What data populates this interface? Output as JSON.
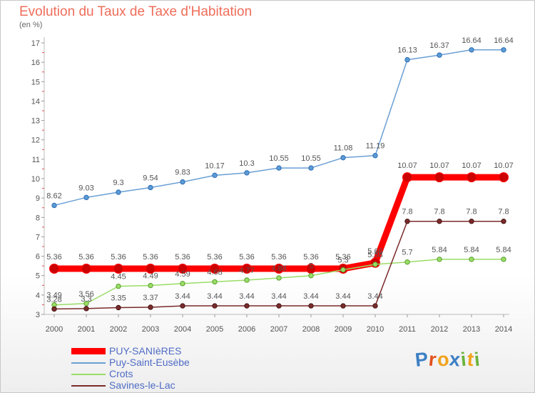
{
  "title": "Evolution du Taux de Taxe d'Habitation",
  "subtitle": "(en %)",
  "logo_letters": [
    "P",
    "r",
    "o",
    "x",
    "i",
    "t",
    "i"
  ],
  "logo_colors": [
    "#3c7fc4",
    "#e2521d",
    "#f0a31c",
    "#3c7fc4",
    "#6ab33b",
    "#f0a31c",
    "#6ab33b"
  ],
  "chart_data": {
    "type": "line",
    "x": [
      "2000",
      "2001",
      "2002",
      "2003",
      "2004",
      "2005",
      "2006",
      "2007",
      "2008",
      "2009",
      "2010",
      "2011",
      "2012",
      "2013",
      "2014"
    ],
    "ylim": [
      3,
      17
    ],
    "yticks": [
      "3",
      "4",
      "5",
      "6",
      "7",
      "8",
      "9",
      "10",
      "11",
      "12",
      "13",
      "14",
      "15",
      "16",
      "17"
    ],
    "grid": false,
    "legend_position": "bottom-left",
    "series": [
      {
        "name": "PUY-SANIèRES",
        "color": "#ff0000",
        "values": [
          5.36,
          5.36,
          5.36,
          5.36,
          5.36,
          5.36,
          5.36,
          5.36,
          5.36,
          5.36,
          5.66,
          10.07,
          10.07,
          10.07,
          10.07
        ],
        "labels": [
          "5.36",
          "5.36",
          "5.36",
          "5.36",
          "5.36",
          "5.36",
          "5.36",
          "5.36",
          "5.36",
          "5.36",
          "5.66",
          "10.07",
          "10.07",
          "10.07",
          "10.07"
        ]
      },
      {
        "name": "Puy-Saint-Eusèbe",
        "color": "#6a9fd4",
        "values": [
          8.62,
          9.03,
          9.3,
          9.54,
          9.83,
          10.17,
          10.3,
          10.55,
          10.55,
          11.08,
          11.19,
          16.13,
          16.37,
          16.64,
          16.64
        ],
        "labels": [
          "8.62",
          "9.03",
          "9.3",
          "9.54",
          "9.83",
          "10.17",
          "10.3",
          "10.55",
          "10.55",
          "11.08",
          "11.19",
          "16.13",
          "16.37",
          "16.64",
          "16.64"
        ]
      },
      {
        "name": "Crots",
        "color": "#99dd66",
        "values": [
          3.49,
          3.56,
          4.45,
          4.49,
          4.59,
          4.68,
          4.77,
          4.88,
          5.0,
          5.3,
          5.58,
          5.7,
          5.84,
          5.84,
          5.84
        ],
        "labels": [
          "3.49",
          "3.56",
          "4.45",
          "4.49",
          "4.59",
          "4.68",
          "4.77",
          "4.88",
          "5",
          "5.3",
          "5.58",
          "5.7",
          "5.84",
          "5.84",
          "5.84"
        ]
      },
      {
        "name": "Savines-le-Lac",
        "color": "#7a2b2b",
        "values": [
          3.28,
          3.3,
          3.35,
          3.37,
          3.44,
          3.44,
          3.44,
          3.44,
          3.44,
          3.44,
          3.44,
          7.8,
          7.8,
          7.8,
          7.8
        ],
        "labels": [
          "3.28",
          "3.3",
          "3.35",
          "3.37",
          "3.44",
          "3.44",
          "3.44",
          "3.44",
          "3.44",
          "3.44",
          "3.44",
          "7.8",
          "7.8",
          "7.8",
          "7.8"
        ]
      }
    ]
  }
}
